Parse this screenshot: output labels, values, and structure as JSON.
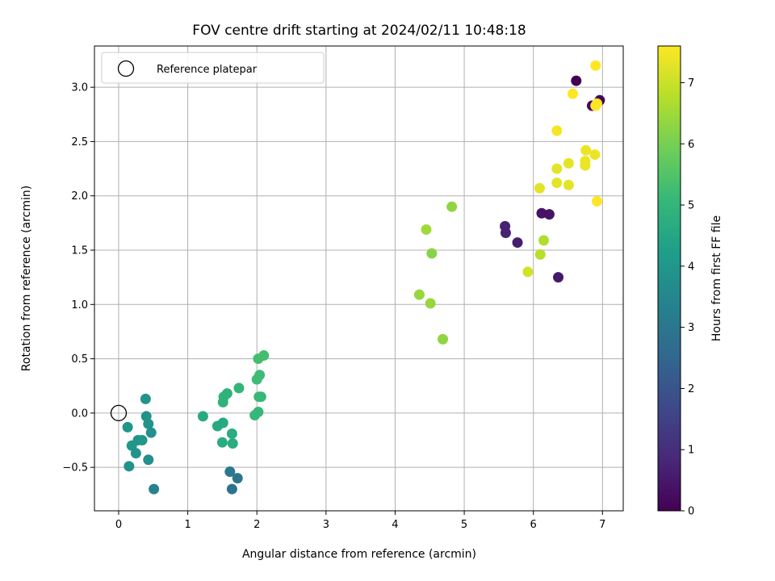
{
  "chart_data": {
    "type": "scatter",
    "title": "FOV centre drift starting at 2024/02/11 10:48:18",
    "xlabel": "Angular distance from reference (arcmin)",
    "ylabel": "Rotation from reference (arcmin)",
    "xlim": [
      -0.35,
      7.3
    ],
    "ylim": [
      -0.9,
      3.38
    ],
    "xticks": [
      0,
      1,
      2,
      3,
      4,
      5,
      6,
      7
    ],
    "xtick_labels": [
      "0",
      "1",
      "2",
      "3",
      "4",
      "5",
      "6",
      "7"
    ],
    "yticks": [
      -0.5,
      0.0,
      0.5,
      1.0,
      1.5,
      2.0,
      2.5,
      3.0
    ],
    "ytick_labels": [
      "−0.5",
      "0.0",
      "0.5",
      "1.0",
      "1.5",
      "2.0",
      "2.5",
      "3.0"
    ],
    "grid": true,
    "legend": {
      "position": "top-left",
      "entries": [
        "Reference platepar"
      ]
    },
    "reference_point": {
      "x": 0,
      "y": 0
    },
    "colorbar": {
      "label": "Hours from first FF file",
      "range": [
        0,
        7.6
      ],
      "ticks": [
        0,
        1,
        2,
        3,
        4,
        5,
        6,
        7
      ],
      "colormap": "viridis"
    },
    "colormap_stops": [
      "#440154",
      "#482878",
      "#3e4989",
      "#31688e",
      "#26828e",
      "#1f9e89",
      "#35b779",
      "#6ece58",
      "#b5de2b",
      "#fde725"
    ],
    "points": [
      {
        "x": 6.62,
        "y": 3.06,
        "h": 0.0
      },
      {
        "x": 6.96,
        "y": 2.88,
        "h": 0.1
      },
      {
        "x": 6.85,
        "y": 2.83,
        "h": 0.2
      },
      {
        "x": 6.12,
        "y": 1.84,
        "h": 0.4
      },
      {
        "x": 6.23,
        "y": 1.83,
        "h": 0.4
      },
      {
        "x": 5.59,
        "y": 1.72,
        "h": 0.7
      },
      {
        "x": 5.6,
        "y": 1.66,
        "h": 0.7
      },
      {
        "x": 5.77,
        "y": 1.57,
        "h": 0.6
      },
      {
        "x": 6.36,
        "y": 1.25,
        "h": 0.5
      },
      {
        "x": 1.61,
        "y": -0.54,
        "h": 3.1
      },
      {
        "x": 1.72,
        "y": -0.6,
        "h": 3.0
      },
      {
        "x": 1.64,
        "y": -0.7,
        "h": 2.9
      },
      {
        "x": 0.51,
        "y": -0.7,
        "h": 3.4
      },
      {
        "x": 0.39,
        "y": 0.13,
        "h": 3.9
      },
      {
        "x": 0.4,
        "y": -0.03,
        "h": 3.9
      },
      {
        "x": 0.43,
        "y": -0.1,
        "h": 3.9
      },
      {
        "x": 0.47,
        "y": -0.18,
        "h": 3.8
      },
      {
        "x": 0.13,
        "y": -0.13,
        "h": 4.0
      },
      {
        "x": 0.28,
        "y": -0.25,
        "h": 4.0
      },
      {
        "x": 0.34,
        "y": -0.25,
        "h": 4.0
      },
      {
        "x": 0.19,
        "y": -0.3,
        "h": 4.0
      },
      {
        "x": 0.25,
        "y": -0.37,
        "h": 3.9
      },
      {
        "x": 0.43,
        "y": -0.43,
        "h": 3.8
      },
      {
        "x": 0.15,
        "y": -0.49,
        "h": 3.9
      },
      {
        "x": 1.22,
        "y": -0.03,
        "h": 4.6
      },
      {
        "x": 1.43,
        "y": -0.12,
        "h": 4.6
      },
      {
        "x": 1.51,
        "y": -0.09,
        "h": 4.6
      },
      {
        "x": 1.64,
        "y": -0.19,
        "h": 4.7
      },
      {
        "x": 1.5,
        "y": -0.27,
        "h": 4.7
      },
      {
        "x": 1.65,
        "y": -0.28,
        "h": 4.7
      },
      {
        "x": 1.51,
        "y": 0.1,
        "h": 4.9
      },
      {
        "x": 1.52,
        "y": 0.15,
        "h": 4.9
      },
      {
        "x": 1.57,
        "y": 0.18,
        "h": 4.9
      },
      {
        "x": 1.74,
        "y": 0.23,
        "h": 5.0
      },
      {
        "x": 1.97,
        "y": -0.02,
        "h": 5.1
      },
      {
        "x": 2.02,
        "y": 0.01,
        "h": 5.1
      },
      {
        "x": 2.03,
        "y": 0.15,
        "h": 5.1
      },
      {
        "x": 2.06,
        "y": 0.15,
        "h": 5.1
      },
      {
        "x": 2.0,
        "y": 0.31,
        "h": 5.2
      },
      {
        "x": 2.04,
        "y": 0.35,
        "h": 5.2
      },
      {
        "x": 2.02,
        "y": 0.5,
        "h": 5.3
      },
      {
        "x": 2.1,
        "y": 0.53,
        "h": 5.3
      },
      {
        "x": 4.35,
        "y": 1.09,
        "h": 6.4
      },
      {
        "x": 4.51,
        "y": 1.01,
        "h": 6.4
      },
      {
        "x": 4.69,
        "y": 0.68,
        "h": 6.3
      },
      {
        "x": 4.53,
        "y": 1.47,
        "h": 6.2
      },
      {
        "x": 4.45,
        "y": 1.69,
        "h": 6.5
      },
      {
        "x": 4.82,
        "y": 1.9,
        "h": 6.3
      },
      {
        "x": 6.15,
        "y": 1.59,
        "h": 6.7
      },
      {
        "x": 6.1,
        "y": 1.46,
        "h": 6.8
      },
      {
        "x": 5.92,
        "y": 1.3,
        "h": 7.1
      },
      {
        "x": 6.09,
        "y": 2.07,
        "h": 7.3
      },
      {
        "x": 6.34,
        "y": 2.12,
        "h": 7.3
      },
      {
        "x": 6.51,
        "y": 2.1,
        "h": 7.3
      },
      {
        "x": 6.34,
        "y": 2.25,
        "h": 7.3
      },
      {
        "x": 6.51,
        "y": 2.3,
        "h": 7.3
      },
      {
        "x": 6.75,
        "y": 2.28,
        "h": 7.4
      },
      {
        "x": 6.75,
        "y": 2.32,
        "h": 7.4
      },
      {
        "x": 6.76,
        "y": 2.42,
        "h": 7.4
      },
      {
        "x": 6.89,
        "y": 2.38,
        "h": 7.4
      },
      {
        "x": 6.34,
        "y": 2.6,
        "h": 7.5
      },
      {
        "x": 6.92,
        "y": 1.95,
        "h": 7.6
      },
      {
        "x": 6.57,
        "y": 2.94,
        "h": 7.6
      },
      {
        "x": 6.9,
        "y": 2.83,
        "h": 7.6
      },
      {
        "x": 6.92,
        "y": 2.85,
        "h": 7.6
      },
      {
        "x": 6.9,
        "y": 3.2,
        "h": 7.6
      }
    ]
  }
}
